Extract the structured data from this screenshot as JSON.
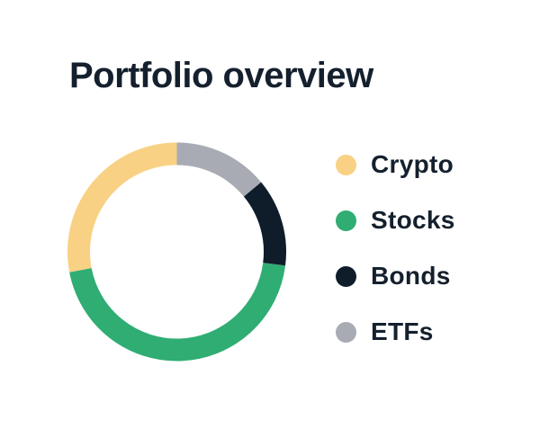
{
  "title": "Portfolio overview",
  "colors": {
    "background": "#FFFFFF",
    "text": "#15202E"
  },
  "chart_data": {
    "type": "pie",
    "variant": "donut",
    "title": "Portfolio overview",
    "unit": "percent",
    "start_angle": "top",
    "direction": "counterclockwise",
    "legend_position": "right",
    "data_labels_shown": false,
    "segments": [
      {
        "label": "Crypto",
        "value": 28,
        "color": "#F9D184"
      },
      {
        "label": "Stocks",
        "value": 45,
        "color": "#2FAD73"
      },
      {
        "label": "Bonds",
        "value": 13,
        "color": "#0F1C2A"
      },
      {
        "label": "ETFs",
        "value": 14,
        "color": "#A8ABB4"
      }
    ]
  }
}
